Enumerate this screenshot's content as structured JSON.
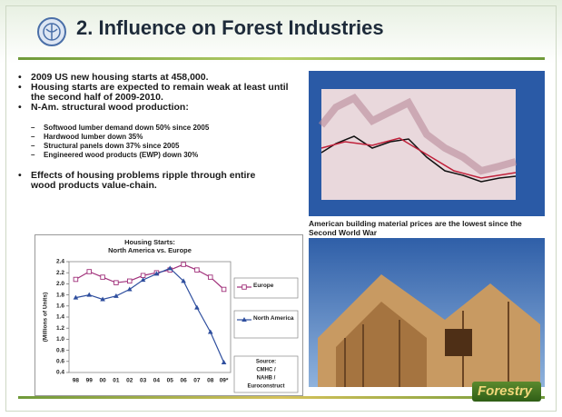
{
  "header": {
    "title": "2. Influence on Forest Industries"
  },
  "bullets": [
    "2009 US new housing starts at 458,000.",
    "Housing starts are expected to remain weak at least until the second half of 2009-2010.",
    "N-Am. structural wood production:"
  ],
  "sub_bullets": [
    "Softwood lumber demand down 50% since 2005",
    "Hardwood lumber down 35%",
    "Structural panels down 37% since 2005",
    "Engineered wood products (EWP) down 30%"
  ],
  "last_bullet": "Effects of housing problems ripple through entire wood products value-chain.",
  "caption": "American building material prices are the lowest since the Second World War",
  "logo_text": "Forestry",
  "chart_data": {
    "type": "line",
    "title": "Housing Starts:",
    "subtitle": "North America vs. Europe",
    "y_label": "(Millions of Units)",
    "categories": [
      "98",
      "99",
      "00",
      "01",
      "02",
      "03",
      "04",
      "05",
      "06",
      "07",
      "08",
      "09*"
    ],
    "series": [
      {
        "name": "Europe",
        "color": "#a0307a",
        "marker": "square",
        "values": [
          2.08,
          2.22,
          2.12,
          2.02,
          2.05,
          2.15,
          2.2,
          2.25,
          2.35,
          2.25,
          2.12,
          1.9
        ]
      },
      {
        "name": "North America",
        "color": "#2e4e9e",
        "marker": "triangle",
        "values": [
          1.75,
          1.8,
          1.72,
          1.78,
          1.9,
          2.07,
          2.18,
          2.28,
          2.05,
          1.57,
          1.13,
          0.58
        ]
      }
    ],
    "ylim": [
      0.4,
      2.4
    ],
    "yticks": [
      0.4,
      0.6,
      0.8,
      {
        "value": 1,
        "label": "1.0"
      },
      1.2,
      1.4,
      1.6,
      1.8,
      {
        "value": 2,
        "label": "2.0"
      },
      2.2,
      2.4
    ],
    "source": [
      "Source:",
      "CMHC /",
      "NAHB /",
      "Euroconstruct"
    ]
  }
}
